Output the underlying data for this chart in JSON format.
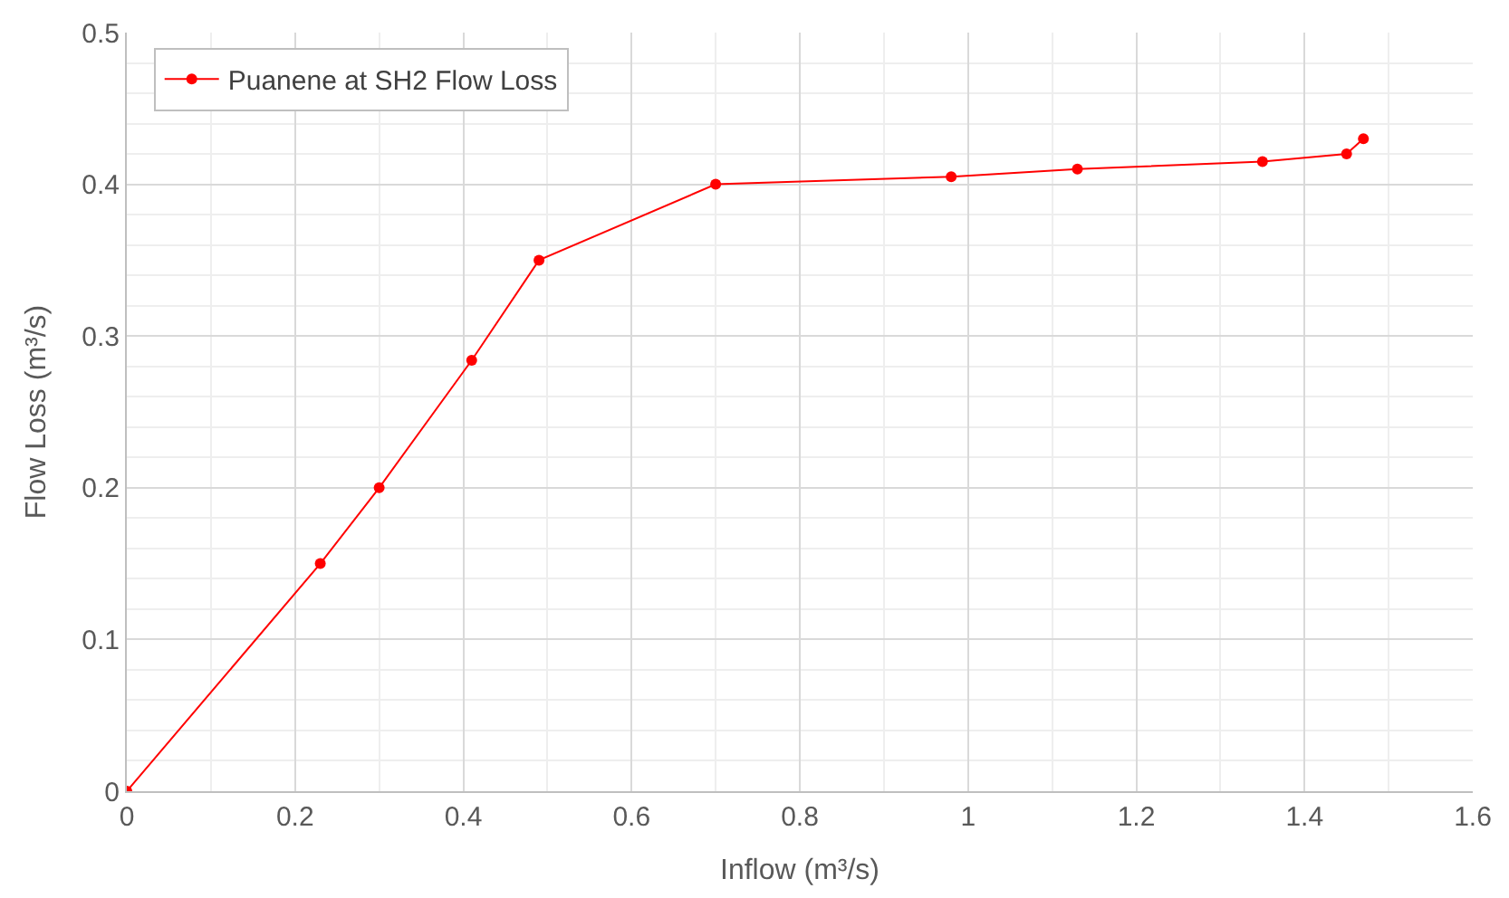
{
  "chart_data": {
    "type": "line",
    "xlabel": "Inflow (m³/s)",
    "ylabel": "Flow Loss (m³/s)",
    "x": [
      0,
      0.23,
      0.3,
      0.41,
      0.49,
      0.7,
      0.98,
      1.13,
      1.35,
      1.45,
      1.47
    ],
    "series": [
      {
        "name": "Puanene at SH2 Flow Loss",
        "color": "#ff0000",
        "values": [
          0,
          0.15,
          0.2,
          0.284,
          0.35,
          0.4,
          0.405,
          0.41,
          0.415,
          0.42,
          0.43
        ]
      }
    ],
    "xlim": [
      0,
      1.6
    ],
    "xticks": [
      0,
      0.2,
      0.4,
      0.6,
      0.8,
      1,
      1.2,
      1.4,
      1.6
    ],
    "ylim": [
      0,
      0.5
    ],
    "yticks": [
      0,
      0.1,
      0.2,
      0.3,
      0.4,
      0.5
    ],
    "grid": true,
    "legend": "top left",
    "marker": "circle",
    "line_style": "solid"
  }
}
